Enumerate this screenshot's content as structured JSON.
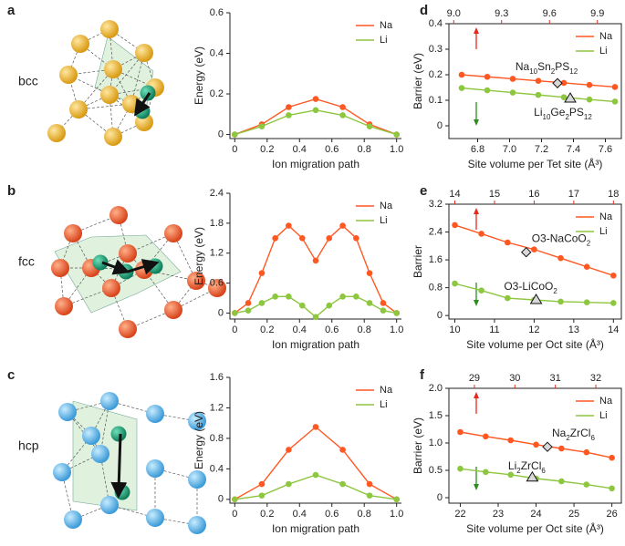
{
  "structures": [
    {
      "label": "a",
      "name": "bcc"
    },
    {
      "label": "b",
      "name": "fcc"
    },
    {
      "label": "c",
      "name": "hcp"
    }
  ],
  "chart_data": [
    {
      "type": "line",
      "xlabel": "Ion migration path",
      "ylabel": "Energy (eV)",
      "x": [
        0,
        0.167,
        0.333,
        0.5,
        0.667,
        0.833,
        1
      ],
      "xlim": [
        -0.03,
        1.03
      ],
      "xticks": [
        0,
        0.2,
        0.4,
        0.6,
        0.8,
        {
          "value": 1,
          "label": "1.0"
        }
      ],
      "ylim": [
        -0.02,
        0.6
      ],
      "yticks": [
        0,
        0.2,
        0.4,
        0.6
      ],
      "legend": "upper right",
      "series": [
        {
          "name": "Na",
          "color": "#ff5722",
          "values": [
            0,
            0.05,
            0.135,
            0.175,
            0.135,
            0.05,
            0
          ]
        },
        {
          "name": "Li",
          "color": "#8dc63f",
          "values": [
            0,
            0.04,
            0.095,
            0.12,
            0.095,
            0.04,
            0
          ]
        }
      ]
    },
    {
      "type": "line",
      "xlabel": "Ion migration path",
      "ylabel": "Energy (eV)",
      "x": [
        0,
        0.083,
        0.167,
        0.25,
        0.333,
        0.417,
        0.5,
        0.583,
        0.667,
        0.75,
        0.833,
        0.917,
        1
      ],
      "xlim": [
        -0.03,
        1.03
      ],
      "xticks": [
        0,
        0.2,
        0.4,
        0.6,
        0.8,
        {
          "value": 1,
          "label": "1.0"
        }
      ],
      "ylim": [
        -0.12,
        2.4
      ],
      "yticks": [
        0,
        0.6,
        1.2,
        1.8,
        2.4
      ],
      "legend": "upper right",
      "series": [
        {
          "name": "Na",
          "color": "#ff5722",
          "values": [
            0,
            0.2,
            0.8,
            1.5,
            1.75,
            1.5,
            1.05,
            1.5,
            1.75,
            1.5,
            0.8,
            0.2,
            0
          ]
        },
        {
          "name": "Li",
          "color": "#8dc63f",
          "values": [
            0,
            0.05,
            0.2,
            0.33,
            0.33,
            0.15,
            -0.08,
            0.15,
            0.33,
            0.33,
            0.2,
            0.05,
            0
          ]
        }
      ]
    },
    {
      "type": "line",
      "xlabel": "Ion migration path",
      "ylabel": "Energy (eV)",
      "x": [
        0,
        0.167,
        0.333,
        0.5,
        0.667,
        0.833,
        1
      ],
      "xlim": [
        -0.03,
        1.03
      ],
      "xticks": [
        0,
        0.2,
        0.4,
        0.6,
        0.8,
        {
          "value": 1,
          "label": "1.0"
        }
      ],
      "ylim": [
        -0.05,
        1.6
      ],
      "yticks": [
        0,
        0.4,
        0.8,
        1.2,
        1.6
      ],
      "legend": "upper right",
      "series": [
        {
          "name": "Na",
          "color": "#ff5722",
          "values": [
            0,
            0.2,
            0.65,
            0.95,
            0.65,
            0.2,
            0
          ]
        },
        {
          "name": "Li",
          "color": "#8dc63f",
          "values": [
            0,
            0.05,
            0.2,
            0.32,
            0.2,
            0.05,
            0
          ]
        }
      ]
    },
    {
      "type": "line",
      "panel_label": "d",
      "xlabel": "Site volume per Tet site (Å³)",
      "ylabel": "Barrier (eV)",
      "x": [
        6.7,
        6.86,
        7.02,
        7.18,
        7.34,
        7.5,
        7.66
      ],
      "xlim": [
        6.62,
        7.7
      ],
      "xticks": [
        6.8,
        {
          "value": 7,
          "label": "7.0"
        },
        7.2,
        7.4,
        7.6
      ],
      "x2lim": [
        8.97,
        10.05
      ],
      "x2ticks": [
        {
          "value": 9,
          "label": "9.0"
        },
        9.3,
        9.6,
        9.9
      ],
      "x2color": "#e8281e",
      "ylim": [
        -0.05,
        0.4
      ],
      "yticks": [
        0,
        0.1,
        0.2,
        0.3,
        0.4
      ],
      "legend": "upper right",
      "series": [
        {
          "name": "Na",
          "color": "#ff5722",
          "values": [
            0.2,
            0.192,
            0.184,
            0.176,
            0.168,
            0.16,
            0.152
          ]
        },
        {
          "name": "Li",
          "color": "#8dc63f",
          "values": [
            0.148,
            0.139,
            0.13,
            0.121,
            0.112,
            0.103,
            0.095
          ]
        }
      ],
      "annotations": [
        {
          "text": "Na10Sn2PS12",
          "x": 7.3,
          "y": 0.167,
          "marker": "diamond"
        },
        {
          "text": "Li10Ge2PS12",
          "x": 7.38,
          "y": 0.107,
          "marker": "triangle"
        }
      ]
    },
    {
      "type": "line",
      "panel_label": "e",
      "xlabel": "Site volume per Oct site (Å³)",
      "ylabel": "Barrier",
      "x": [
        10,
        10.67,
        11.33,
        12,
        12.67,
        13.33,
        14
      ],
      "xlim": [
        9.85,
        14.2
      ],
      "xticks": [
        10,
        11,
        12,
        13,
        14
      ],
      "x2lim": [
        13.85,
        18.2
      ],
      "x2ticks": [
        14,
        15,
        16,
        17,
        18
      ],
      "x2color": "#e8281e",
      "ylim": [
        -0.1,
        3.2
      ],
      "yticks": [
        0,
        0.8,
        1.6,
        2.4,
        3.2
      ],
      "legend": "upper right",
      "series": [
        {
          "name": "Na",
          "color": "#ff5722",
          "values": [
            2.6,
            2.35,
            2.1,
            1.9,
            1.65,
            1.4,
            1.15
          ]
        },
        {
          "name": "Li",
          "color": "#8dc63f",
          "values": [
            0.92,
            0.72,
            0.5,
            0.45,
            0.4,
            0.38,
            0.36
          ]
        }
      ],
      "annotations": [
        {
          "text": "O3-NaCoO2",
          "x": 11.8,
          "y": 1.82,
          "marker": "diamond"
        },
        {
          "text": "O3-LiCoO2",
          "x": 12.05,
          "y": 0.45,
          "marker": "triangle"
        }
      ]
    },
    {
      "type": "line",
      "panel_label": "f",
      "xlabel": "Site volume per Oct site (Å³)",
      "ylabel": "Barrier (eV)",
      "x": [
        22,
        22.67,
        23.33,
        24,
        24.67,
        25.33,
        26
      ],
      "xlim": [
        21.7,
        26.25
      ],
      "xticks": [
        22,
        23,
        24,
        25,
        26
      ],
      "x2lim": [
        28.37,
        32.63
      ],
      "x2ticks": [
        29,
        30,
        31,
        32
      ],
      "x2color": "#e8281e",
      "ylim": [
        -0.1,
        2
      ],
      "yticks": [
        0,
        0.5,
        {
          "value": 1,
          "label": "1.0"
        },
        1.5,
        {
          "value": 2,
          "label": "2.0"
        }
      ],
      "legend": "upper right",
      "series": [
        {
          "name": "Na",
          "color": "#ff5722",
          "values": [
            1.2,
            1.12,
            1.05,
            0.97,
            0.9,
            0.83,
            0.73
          ]
        },
        {
          "name": "Li",
          "color": "#8dc63f",
          "values": [
            0.53,
            0.47,
            0.42,
            0.35,
            0.3,
            0.24,
            0.17
          ]
        }
      ],
      "annotations": [
        {
          "text": "Na2ZrCl6",
          "x": 24.3,
          "y": 0.93,
          "marker": "diamond"
        },
        {
          "text": "Li2ZrCl6",
          "x": 23.9,
          "y": 0.37,
          "marker": "triangle"
        }
      ]
    }
  ]
}
